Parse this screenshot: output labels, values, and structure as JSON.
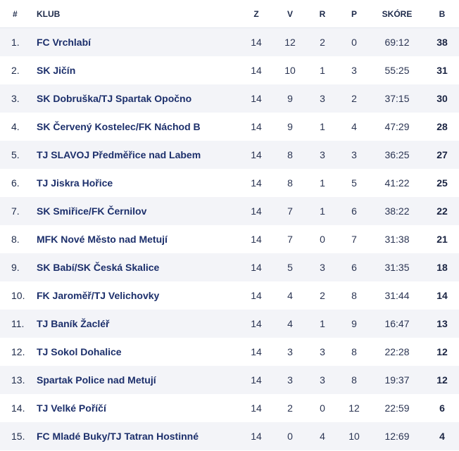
{
  "table": {
    "headers": {
      "rank": "#",
      "club": "KLUB",
      "played": "Z",
      "wins": "V",
      "draws": "R",
      "losses": "P",
      "score": "SKÓRE",
      "points": "B"
    },
    "rows": [
      {
        "rank": "1.",
        "club": "FC Vrchlabí",
        "played": "14",
        "wins": "12",
        "draws": "2",
        "losses": "0",
        "score": "69:12",
        "points": "38"
      },
      {
        "rank": "2.",
        "club": "SK Jičín",
        "played": "14",
        "wins": "10",
        "draws": "1",
        "losses": "3",
        "score": "55:25",
        "points": "31"
      },
      {
        "rank": "3.",
        "club": "SK Dobruška/TJ Spartak Opočno",
        "played": "14",
        "wins": "9",
        "draws": "3",
        "losses": "2",
        "score": "37:15",
        "points": "30"
      },
      {
        "rank": "4.",
        "club": "SK Červený Kostelec/FK Náchod B",
        "played": "14",
        "wins": "9",
        "draws": "1",
        "losses": "4",
        "score": "47:29",
        "points": "28"
      },
      {
        "rank": "5.",
        "club": "TJ SLAVOJ Předměřice nad Labem",
        "played": "14",
        "wins": "8",
        "draws": "3",
        "losses": "3",
        "score": "36:25",
        "points": "27"
      },
      {
        "rank": "6.",
        "club": "TJ Jiskra Hořice",
        "played": "14",
        "wins": "8",
        "draws": "1",
        "losses": "5",
        "score": "41:22",
        "points": "25"
      },
      {
        "rank": "7.",
        "club": "SK Smiřice/FK Černilov",
        "played": "14",
        "wins": "7",
        "draws": "1",
        "losses": "6",
        "score": "38:22",
        "points": "22"
      },
      {
        "rank": "8.",
        "club": "MFK Nové Město nad Metují",
        "played": "14",
        "wins": "7",
        "draws": "0",
        "losses": "7",
        "score": "31:38",
        "points": "21"
      },
      {
        "rank": "9.",
        "club": "SK Babí/SK Česká Skalice",
        "played": "14",
        "wins": "5",
        "draws": "3",
        "losses": "6",
        "score": "31:35",
        "points": "18"
      },
      {
        "rank": "10.",
        "club": "FK Jaroměř/TJ Velichovky",
        "played": "14",
        "wins": "4",
        "draws": "2",
        "losses": "8",
        "score": "31:44",
        "points": "14"
      },
      {
        "rank": "11.",
        "club": "TJ Baník Žacléř",
        "played": "14",
        "wins": "4",
        "draws": "1",
        "losses": "9",
        "score": "16:47",
        "points": "13"
      },
      {
        "rank": "12.",
        "club": "TJ Sokol Dohalice",
        "played": "14",
        "wins": "3",
        "draws": "3",
        "losses": "8",
        "score": "22:28",
        "points": "12"
      },
      {
        "rank": "13.",
        "club": "Spartak Police nad Metují",
        "played": "14",
        "wins": "3",
        "draws": "3",
        "losses": "8",
        "score": "19:37",
        "points": "12"
      },
      {
        "rank": "14.",
        "club": "TJ Velké Poříčí",
        "played": "14",
        "wins": "2",
        "draws": "0",
        "losses": "12",
        "score": "22:59",
        "points": "6"
      },
      {
        "rank": "15.",
        "club": "FC Mladé Buky/TJ Tatran Hostinné",
        "played": "14",
        "wins": "0",
        "draws": "4",
        "losses": "10",
        "score": "12:69",
        "points": "4"
      }
    ]
  }
}
